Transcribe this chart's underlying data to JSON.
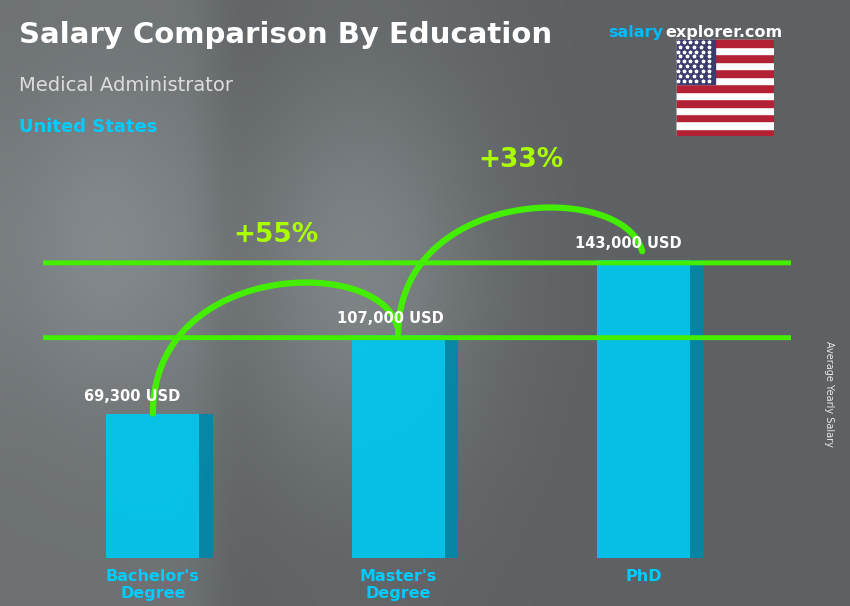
{
  "title": "Salary Comparison By Education",
  "subtitle": "Medical Administrator",
  "country": "United States",
  "site_name": "salary",
  "site_suffix": "explorer.com",
  "ylabel": "Average Yearly Salary",
  "categories": [
    "Bachelor's\nDegree",
    "Master's\nDegree",
    "PhD"
  ],
  "values": [
    69300,
    107000,
    143000
  ],
  "value_labels": [
    "69,300 USD",
    "107,000 USD",
    "143,000 USD"
  ],
  "pct_labels": [
    "+55%",
    "+33%"
  ],
  "bar_color_face": "#00C8F0",
  "bar_color_dark": "#0088AA",
  "bar_color_top": "#55DDFF",
  "arrow_color": "#44EE00",
  "pct_color": "#AAFF00",
  "title_color": "#FFFFFF",
  "subtitle_color": "#DDDDDD",
  "country_color": "#00CCFF",
  "label_color": "#FFFFFF",
  "xlabel_color": "#00CCFF",
  "site_color": "#00BBFF",
  "site_suffix_color": "#FFFFFF",
  "bg_color": "#606060",
  "fig_width": 8.5,
  "fig_height": 6.06,
  "bar_width": 0.38,
  "max_val": 175000
}
